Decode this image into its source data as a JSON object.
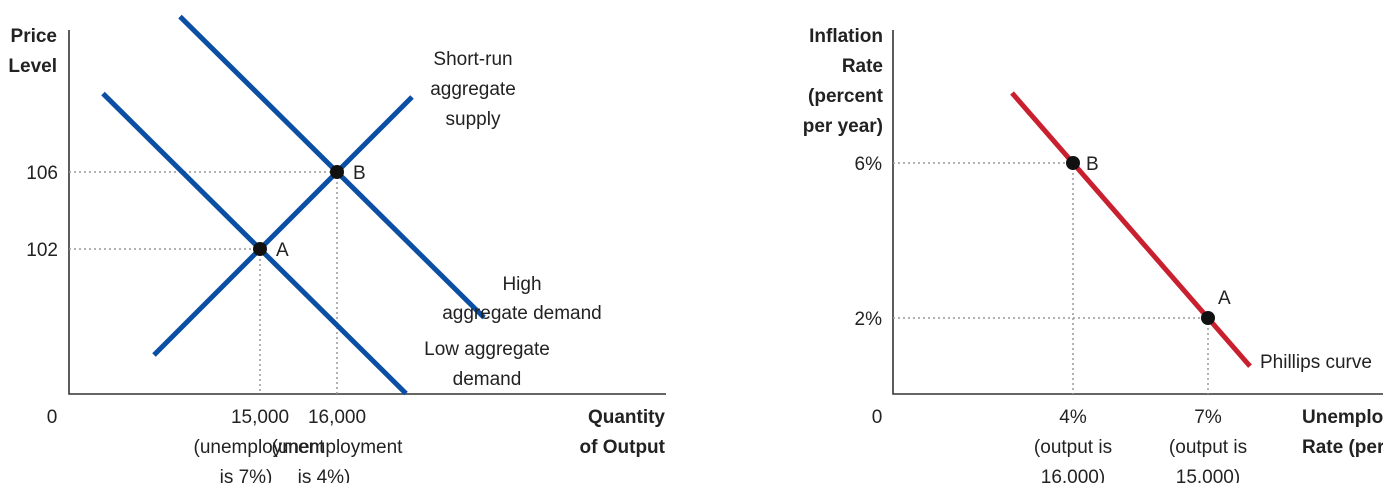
{
  "colors": {
    "blue": "#0a4fa3",
    "red": "#c8202f",
    "axis": "#333333",
    "guide": "#999999",
    "dot": "#111111"
  },
  "chart_data": [
    {
      "type": "line",
      "ylabel": [
        "Price",
        "Level"
      ],
      "xlabel": [
        "Quantity",
        "of Output"
      ],
      "origin_label": "0",
      "y_ticks": [
        {
          "value": 106,
          "label": "106"
        },
        {
          "value": 102,
          "label": "102"
        }
      ],
      "x_ticks": [
        {
          "value": 15000,
          "label": "15,000",
          "sub": [
            "(unemployment",
            "is 7%)"
          ]
        },
        {
          "value": 16000,
          "label": "16,000",
          "sub": [
            "(unemployment",
            "is 4%)"
          ]
        }
      ],
      "series": [
        {
          "name": "Short-run aggregate supply",
          "label_lines": [
            "Short-run",
            "aggregate",
            "supply"
          ],
          "color": "#0a4fa3"
        },
        {
          "name": "High aggregate demand",
          "label_lines": [
            "High",
            "aggregate demand"
          ],
          "color": "#0a4fa3"
        },
        {
          "name": "Low aggregate demand",
          "label_lines": [
            "Low aggregate",
            "demand"
          ],
          "color": "#0a4fa3"
        }
      ],
      "points": [
        {
          "label": "A",
          "x": 15000,
          "y": 102
        },
        {
          "label": "B",
          "x": 16000,
          "y": 106
        }
      ]
    },
    {
      "type": "line",
      "ylabel": [
        "Inflation",
        "Rate",
        "(percent",
        "per year)"
      ],
      "xlabel": [
        "Unemploy",
        "Rate (per"
      ],
      "origin_label": "0",
      "y_ticks": [
        {
          "value": 6,
          "label": "6%"
        },
        {
          "value": 2,
          "label": "2%"
        }
      ],
      "x_ticks": [
        {
          "value": 4,
          "label": "4%",
          "sub": [
            "(output is",
            "16,000)"
          ]
        },
        {
          "value": 7,
          "label": "7%",
          "sub": [
            "(output is",
            "15,000)"
          ]
        }
      ],
      "series": [
        {
          "name": "Phillips curve",
          "label_lines": [
            "Phillips curve"
          ],
          "color": "#c8202f"
        }
      ],
      "points": [
        {
          "label": "B",
          "x": 4,
          "y": 6
        },
        {
          "label": "A",
          "x": 7,
          "y": 2
        }
      ]
    }
  ]
}
